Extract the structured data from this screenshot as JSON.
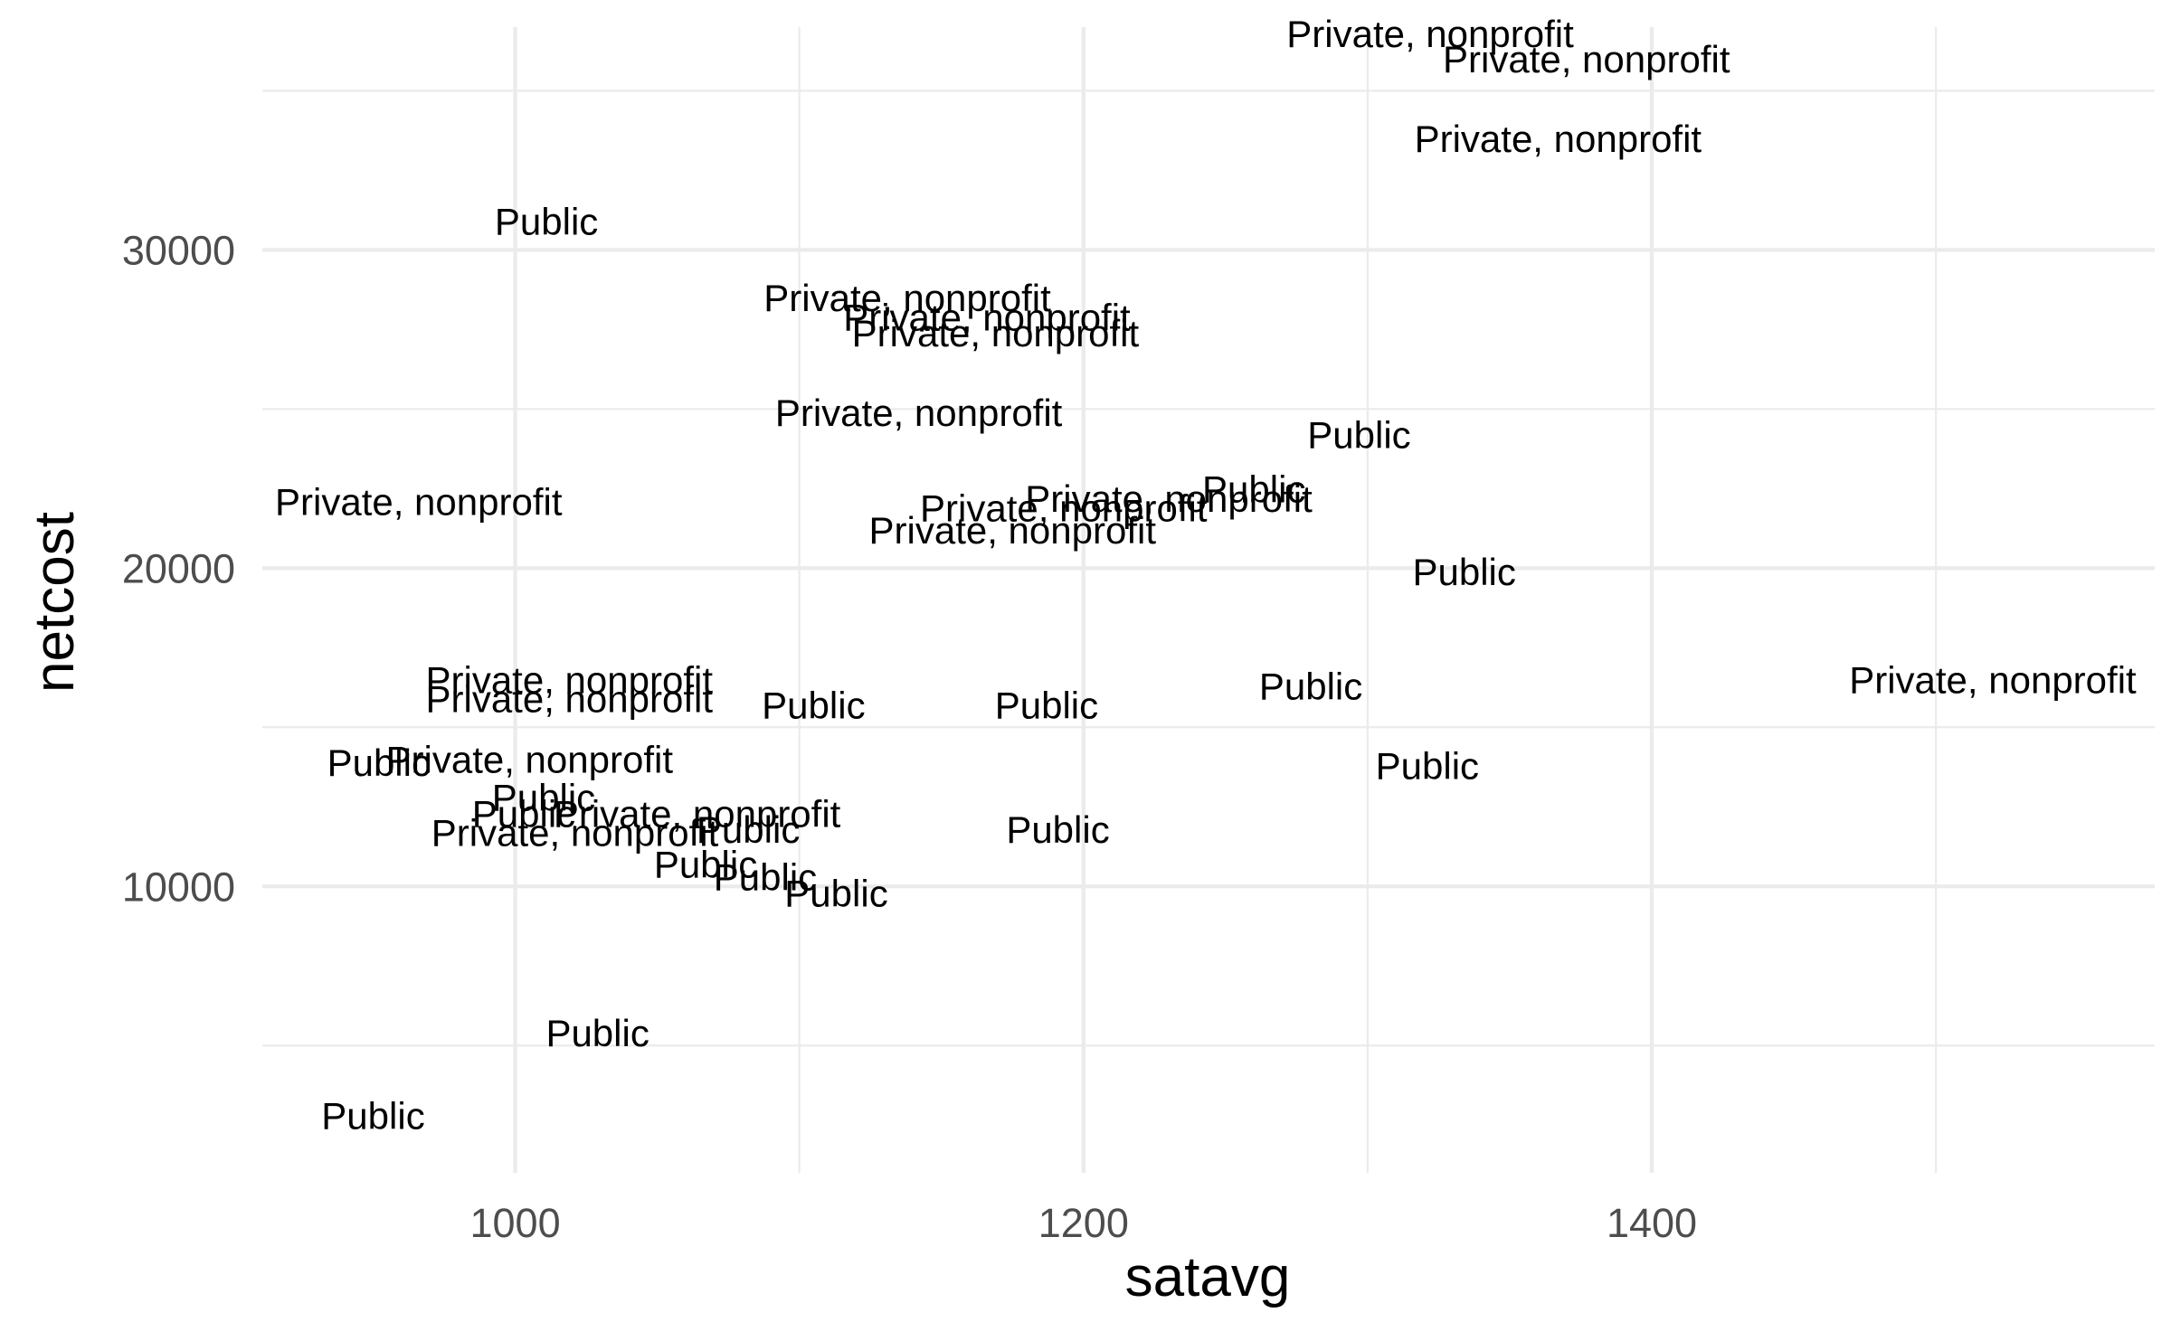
{
  "chart_data": {
    "type": "scatter",
    "xlabel": "satavg",
    "ylabel": "netcost",
    "xlim": [
      911,
      1577
    ],
    "ylim": [
      1000,
      37000
    ],
    "x_major_ticks": [
      1000,
      1200,
      1400
    ],
    "x_minor_ticks": [
      1100,
      1300,
      1500
    ],
    "y_major_ticks": [
      10000,
      20000,
      30000
    ],
    "y_minor_ticks": [
      5000,
      15000,
      25000,
      35000
    ],
    "x_tick_labels": [
      "1000",
      "1200",
      "1400"
    ],
    "y_tick_labels": [
      "10000",
      "20000",
      "30000"
    ],
    "grid": true,
    "points": [
      {
        "x": 1322,
        "y": 36800,
        "label": "Private, nonprofit"
      },
      {
        "x": 1377,
        "y": 36000,
        "label": "Private, nonprofit"
      },
      {
        "x": 1367,
        "y": 33500,
        "label": "Private, nonprofit"
      },
      {
        "x": 1011,
        "y": 30900,
        "label": "Public"
      },
      {
        "x": 1138,
        "y": 28500,
        "label": "Private, nonprofit"
      },
      {
        "x": 1166,
        "y": 27900,
        "label": "Private, nonprofit"
      },
      {
        "x": 1169,
        "y": 27400,
        "label": "Private, nonprofit"
      },
      {
        "x": 1142,
        "y": 24900,
        "label": "Private, nonprofit"
      },
      {
        "x": 1297,
        "y": 24200,
        "label": "Public"
      },
      {
        "x": 1230,
        "y": 22200,
        "label": "Private, nonprofit"
      },
      {
        "x": 1260,
        "y": 22500,
        "label": "Public"
      },
      {
        "x": 1193,
        "y": 21900,
        "label": "Private, nonprofit"
      },
      {
        "x": 966,
        "y": 22100,
        "label": "Private, nonprofit"
      },
      {
        "x": 1175,
        "y": 21200,
        "label": "Private, nonprofit"
      },
      {
        "x": 1334,
        "y": 19900,
        "label": "Public"
      },
      {
        "x": 1520,
        "y": 16500,
        "label": "Private, nonprofit"
      },
      {
        "x": 1280,
        "y": 16300,
        "label": "Public"
      },
      {
        "x": 1019,
        "y": 16500,
        "label": "Private, nonprofit"
      },
      {
        "x": 1019,
        "y": 15900,
        "label": "Private, nonprofit"
      },
      {
        "x": 1105,
        "y": 15700,
        "label": "Public"
      },
      {
        "x": 1187,
        "y": 15700,
        "label": "Public"
      },
      {
        "x": 1005,
        "y": 14000,
        "label": "Private, nonprofit"
      },
      {
        "x": 952,
        "y": 13900,
        "label": "Public"
      },
      {
        "x": 1321,
        "y": 13800,
        "label": "Public"
      },
      {
        "x": 1010,
        "y": 12800,
        "label": "Public"
      },
      {
        "x": 1003,
        "y": 12300,
        "label": "Public"
      },
      {
        "x": 1064,
        "y": 12300,
        "label": "Private, nonprofit"
      },
      {
        "x": 1021,
        "y": 11700,
        "label": "Private, nonprofit"
      },
      {
        "x": 1082,
        "y": 11800,
        "label": "Public"
      },
      {
        "x": 1191,
        "y": 11800,
        "label": "Public"
      },
      {
        "x": 1067,
        "y": 10700,
        "label": "Public"
      },
      {
        "x": 1088,
        "y": 10300,
        "label": "Public"
      },
      {
        "x": 1113,
        "y": 9800,
        "label": "Public"
      },
      {
        "x": 1029,
        "y": 5400,
        "label": "Public"
      },
      {
        "x": 950,
        "y": 2800,
        "label": "Public"
      }
    ]
  }
}
